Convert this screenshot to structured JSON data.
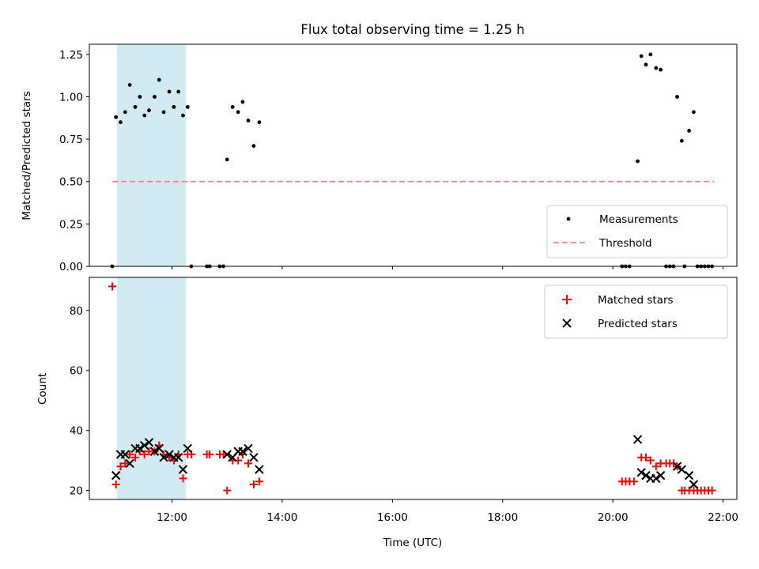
{
  "chart_data": [
    {
      "type": "scatter",
      "title": "Flux total observing time = 1.25 h",
      "ylabel": "Matched/Predicted stars",
      "xlabel": "",
      "xlim": [
        "10:30",
        "22:15"
      ],
      "ylim": [
        0,
        1.31
      ],
      "yticks": [
        "0.00",
        "0.25",
        "0.50",
        "0.75",
        "1.00",
        "1.25"
      ],
      "highlight_span": {
        "from": "11:00",
        "to": "12:15",
        "color": "#add8e6"
      },
      "legend": {
        "placement": "lower-right",
        "entries": [
          "Measurements",
          "Threshold"
        ]
      },
      "threshold": {
        "name": "Threshold",
        "y": 0.5,
        "from": "10:55",
        "to": "21:50",
        "color": "#ff7f7f"
      },
      "series": [
        {
          "name": "Measurements",
          "color": "#000000",
          "points": [
            [
              "10:55",
              0.0
            ],
            [
              "10:59",
              0.88
            ],
            [
              "11:04",
              0.85
            ],
            [
              "11:09",
              0.91
            ],
            [
              "11:14",
              1.07
            ],
            [
              "11:20",
              0.94
            ],
            [
              "11:25",
              1.0
            ],
            [
              "11:30",
              0.89
            ],
            [
              "11:35",
              0.92
            ],
            [
              "11:41",
              1.0
            ],
            [
              "11:46",
              1.1
            ],
            [
              "11:51",
              0.91
            ],
            [
              "11:57",
              1.03
            ],
            [
              "12:02",
              0.94
            ],
            [
              "12:07",
              1.03
            ],
            [
              "12:12",
              0.89
            ],
            [
              "12:17",
              0.94
            ],
            [
              "12:21",
              0.0
            ],
            [
              "12:38",
              0.0
            ],
            [
              "12:41",
              0.0
            ],
            [
              "12:52",
              0.0
            ],
            [
              "12:56",
              0.0
            ],
            [
              "13:00",
              0.63
            ],
            [
              "13:06",
              0.94
            ],
            [
              "13:12",
              0.91
            ],
            [
              "13:17",
              0.97
            ],
            [
              "13:23",
              0.86
            ],
            [
              "13:29",
              0.71
            ],
            [
              "13:35",
              0.85
            ],
            [
              "20:10",
              0.0
            ],
            [
              "20:14",
              0.0
            ],
            [
              "20:18",
              0.0
            ],
            [
              "20:27",
              0.62
            ],
            [
              "20:31",
              1.24
            ],
            [
              "20:36",
              1.19
            ],
            [
              "20:41",
              1.25
            ],
            [
              "20:47",
              1.17
            ],
            [
              "20:52",
              1.16
            ],
            [
              "20:58",
              0.0
            ],
            [
              "21:02",
              0.0
            ],
            [
              "21:06",
              0.0
            ],
            [
              "21:10",
              1.0
            ],
            [
              "21:15",
              0.74
            ],
            [
              "21:18",
              0.0
            ],
            [
              "21:23",
              0.8
            ],
            [
              "21:28",
              0.91
            ],
            [
              "21:32",
              0.0
            ],
            [
              "21:36",
              0.0
            ],
            [
              "21:40",
              0.0
            ],
            [
              "21:44",
              0.0
            ],
            [
              "21:48",
              0.0
            ]
          ]
        }
      ]
    },
    {
      "type": "scatter",
      "title": "",
      "ylabel": "Count",
      "xlabel": "Time (UTC)",
      "xlim": [
        "10:30",
        "22:15"
      ],
      "ylim": [
        17,
        91
      ],
      "yticks": [
        "20",
        "40",
        "60",
        "80"
      ],
      "xticks": [
        "12:00",
        "14:00",
        "16:00",
        "18:00",
        "20:00",
        "22:00"
      ],
      "highlight_span": {
        "from": "11:00",
        "to": "12:15",
        "color": "#add8e6"
      },
      "legend": {
        "placement": "upper-right",
        "entries": [
          "Matched stars",
          "Predicted stars"
        ]
      },
      "series": [
        {
          "name": "Matched stars",
          "marker": "plus",
          "color": "#ff0000",
          "points": [
            [
              "10:55",
              88
            ],
            [
              "10:59",
              22
            ],
            [
              "11:04",
              28
            ],
            [
              "11:09",
              29
            ],
            [
              "11:14",
              32
            ],
            [
              "11:20",
              31
            ],
            [
              "11:25",
              33
            ],
            [
              "11:30",
              32
            ],
            [
              "11:35",
              33
            ],
            [
              "11:41",
              33
            ],
            [
              "11:46",
              35
            ],
            [
              "11:51",
              32
            ],
            [
              "11:57",
              31
            ],
            [
              "12:02",
              30
            ],
            [
              "12:07",
              32
            ],
            [
              "12:12",
              24
            ],
            [
              "12:17",
              32
            ],
            [
              "12:21",
              32
            ],
            [
              "12:38",
              32
            ],
            [
              "12:41",
              32
            ],
            [
              "12:52",
              32
            ],
            [
              "12:56",
              32
            ],
            [
              "13:00",
              20
            ],
            [
              "13:06",
              30
            ],
            [
              "13:12",
              30
            ],
            [
              "13:17",
              32
            ],
            [
              "13:23",
              29
            ],
            [
              "13:29",
              22
            ],
            [
              "13:35",
              23
            ],
            [
              "20:10",
              23
            ],
            [
              "20:14",
              23
            ],
            [
              "20:18",
              23
            ],
            [
              "20:23",
              23
            ],
            [
              "20:31",
              31
            ],
            [
              "20:36",
              31
            ],
            [
              "20:41",
              30
            ],
            [
              "20:47",
              28
            ],
            [
              "20:52",
              29
            ],
            [
              "20:58",
              29
            ],
            [
              "21:02",
              29
            ],
            [
              "21:06",
              29
            ],
            [
              "21:10",
              28
            ],
            [
              "21:15",
              20
            ],
            [
              "21:18",
              20
            ],
            [
              "21:23",
              20
            ],
            [
              "21:28",
              20
            ],
            [
              "21:32",
              20
            ],
            [
              "21:36",
              20
            ],
            [
              "21:40",
              20
            ],
            [
              "21:44",
              20
            ],
            [
              "21:48",
              20
            ]
          ]
        },
        {
          "name": "Predicted stars",
          "marker": "x",
          "color": "#000000",
          "points": [
            [
              "10:59",
              25
            ],
            [
              "11:04",
              32
            ],
            [
              "11:09",
              32
            ],
            [
              "11:14",
              29
            ],
            [
              "11:20",
              34
            ],
            [
              "11:25",
              34
            ],
            [
              "11:30",
              35
            ],
            [
              "11:35",
              36
            ],
            [
              "11:41",
              33
            ],
            [
              "11:46",
              34
            ],
            [
              "11:51",
              31
            ],
            [
              "11:57",
              32
            ],
            [
              "12:02",
              31
            ],
            [
              "12:07",
              31
            ],
            [
              "12:12",
              27
            ],
            [
              "12:17",
              34
            ],
            [
              "13:00",
              32
            ],
            [
              "13:06",
              31
            ],
            [
              "13:12",
              33
            ],
            [
              "13:17",
              33
            ],
            [
              "13:23",
              34
            ],
            [
              "13:29",
              31
            ],
            [
              "13:35",
              27
            ],
            [
              "20:27",
              37
            ],
            [
              "20:31",
              26
            ],
            [
              "20:36",
              25
            ],
            [
              "20:41",
              24
            ],
            [
              "20:47",
              24
            ],
            [
              "20:52",
              25
            ],
            [
              "21:10",
              28
            ],
            [
              "21:15",
              27
            ],
            [
              "21:23",
              25
            ],
            [
              "21:28",
              22
            ]
          ]
        }
      ]
    }
  ]
}
